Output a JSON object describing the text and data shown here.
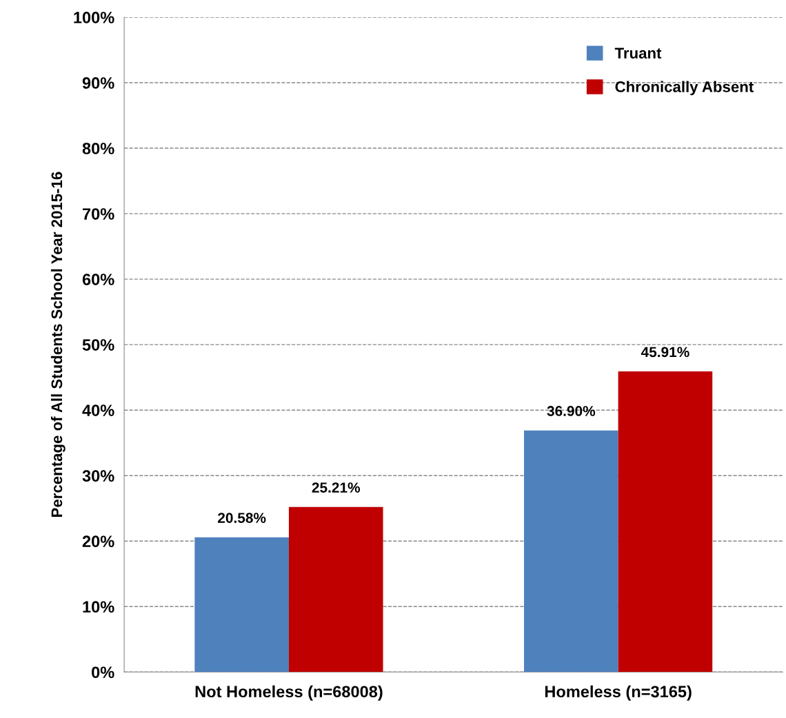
{
  "chart_data": {
    "type": "bar",
    "ylabel": "Percentage of All Students School Year 2015-16",
    "categories": [
      "Not Homeless (n=68008)",
      "Homeless (n=3165)"
    ],
    "series": [
      {
        "name": "Truant",
        "color": "#4f81bd",
        "values": [
          20.58,
          36.9
        ],
        "value_labels": [
          "20.58%",
          "36.90%"
        ]
      },
      {
        "name": "Chronically Absent",
        "color": "#c00000",
        "values": [
          25.21,
          45.91
        ],
        "value_labels": [
          "25.21%",
          "45.91%"
        ]
      }
    ],
    "ylim": [
      0,
      100
    ],
    "yticks": [
      {
        "value": 0,
        "label": "0%"
      },
      {
        "value": 10,
        "label": "10%"
      },
      {
        "value": 20,
        "label": "20%"
      },
      {
        "value": 30,
        "label": "30%"
      },
      {
        "value": 40,
        "label": "40%"
      },
      {
        "value": 50,
        "label": "50%"
      },
      {
        "value": 60,
        "label": "60%"
      },
      {
        "value": 70,
        "label": "70%"
      },
      {
        "value": 80,
        "label": "80%"
      },
      {
        "value": 90,
        "label": "90%"
      },
      {
        "value": 100,
        "label": "100%"
      }
    ],
    "grid": "y",
    "legend": "top right"
  }
}
